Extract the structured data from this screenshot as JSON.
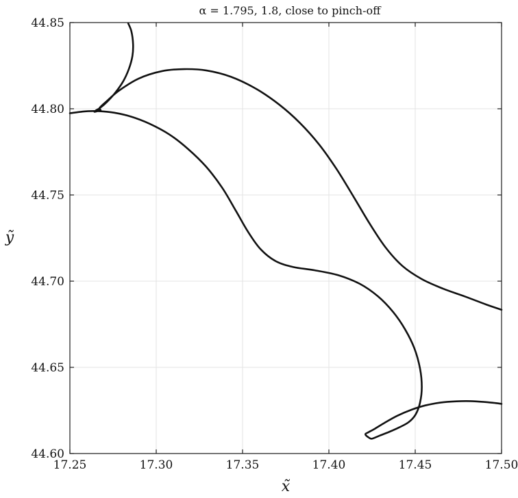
{
  "chart_data": {
    "type": "line",
    "title": "α = 1.795, 1.8, close to pinch-off",
    "xlabel": "x̃",
    "ylabel": "ỹ",
    "xlim": [
      17.25,
      17.5
    ],
    "ylim": [
      44.6,
      44.85
    ],
    "xticks": [
      17.25,
      17.3,
      17.35,
      17.4,
      17.45,
      17.5
    ],
    "yticks": [
      44.6,
      44.65,
      44.7,
      44.75,
      44.8,
      44.85
    ],
    "xtick_labels": [
      "17.25",
      "17.30",
      "17.35",
      "17.40",
      "17.45",
      "17.50"
    ],
    "ytick_labels": [
      "44.60",
      "44.65",
      "44.70",
      "44.75",
      "44.80",
      "44.85"
    ],
    "grid": true,
    "line_color": "#111111",
    "series": [
      {
        "x": [
          17.2838,
          17.2856,
          17.2866,
          17.2862,
          17.2842,
          17.2808,
          17.2762,
          17.2715,
          17.2676,
          17.265,
          17.2642,
          17.2648,
          17.2663,
          17.2678,
          17.2672,
          17.2712,
          17.2784,
          17.2898,
          17.3032,
          17.3162,
          17.3292,
          17.3434,
          17.3578,
          17.371,
          17.3832,
          17.3944,
          17.4046,
          17.4144,
          17.4236,
          17.4328,
          17.4426,
          17.4538,
          17.4662,
          17.4788,
          17.4912,
          17.5
        ],
        "y": [
          44.8495,
          44.845,
          44.8375,
          44.8305,
          44.8232,
          44.8158,
          44.8092,
          44.804,
          44.8006,
          44.799,
          44.7983,
          44.7983,
          44.7988,
          44.7992,
          44.8005,
          44.8043,
          44.8105,
          44.8175,
          44.8218,
          44.823,
          44.8222,
          44.8185,
          44.8116,
          44.8026,
          44.7918,
          44.7792,
          44.7648,
          44.7488,
          44.7334,
          44.7196,
          44.7088,
          44.7012,
          44.6956,
          44.6911,
          44.6864,
          44.6834
        ]
      },
      {
        "x": [
          17.25,
          17.2588,
          17.2672,
          17.2758,
          17.2856,
          17.2962,
          17.3076,
          17.3184,
          17.3288,
          17.3382,
          17.3462,
          17.3532,
          17.3604,
          17.3692,
          17.3794,
          17.3918,
          17.4052,
          17.4178,
          17.4284,
          17.4372,
          17.4442,
          17.4496,
          17.4528,
          17.4538,
          17.4528,
          17.4502,
          17.4462,
          17.4408,
          17.4348,
          17.4292,
          17.4256,
          17.4244,
          17.4232,
          17.4216,
          17.4212,
          17.4228,
          17.4268,
          17.4324,
          17.4396,
          17.4478,
          17.4558,
          17.4648,
          17.4738,
          17.4822,
          17.4904,
          17.4964,
          17.5
        ],
        "y": [
          44.7974,
          44.7985,
          44.7986,
          44.7977,
          44.7954,
          44.7913,
          44.7851,
          44.7767,
          44.7665,
          44.7542,
          44.7407,
          44.7286,
          44.7186,
          44.7116,
          44.7082,
          44.7063,
          44.7035,
          44.6985,
          44.6912,
          44.6821,
          44.6719,
          44.6608,
          44.6492,
          44.6386,
          44.6296,
          44.6226,
          44.6182,
          44.6152,
          44.6125,
          44.6103,
          44.6088,
          44.6086,
          44.6092,
          44.6104,
          44.6114,
          44.6123,
          44.6145,
          44.6179,
          44.6219,
          44.6254,
          44.6279,
          44.6296,
          44.6303,
          44.6304,
          44.6299,
          44.6293,
          44.6288
        ]
      }
    ]
  }
}
